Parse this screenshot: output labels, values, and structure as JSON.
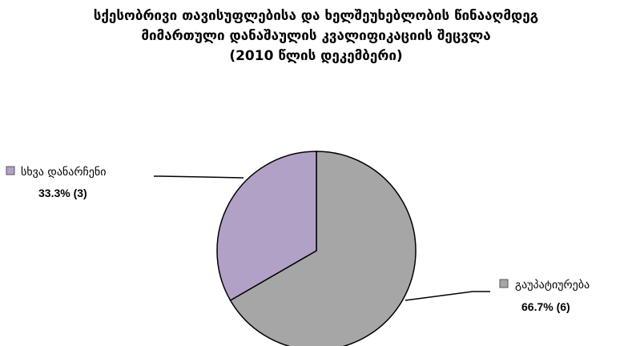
{
  "chart_data": {
    "type": "pie",
    "title_lines": [
      "სქესობრივი თავისუფლებისა და ხელშეუხებლობის წინააღმდეგ",
      "მიმართული  დანაშაულის  კვალიფიკაციის შეცვლა",
      "(2010 წლის დეკემბერი)"
    ],
    "slices": [
      {
        "label": "გაუპატიურება",
        "value": 6,
        "percent_label": "66.7%  (6)",
        "color": "#A6A6A6"
      },
      {
        "label": "სხვა დანარჩენი",
        "value": 3,
        "percent_label": "33.3%  (3)",
        "color": "#B2A1C7"
      }
    ],
    "stroke_color": "#000000",
    "legend": "callout-labels"
  }
}
